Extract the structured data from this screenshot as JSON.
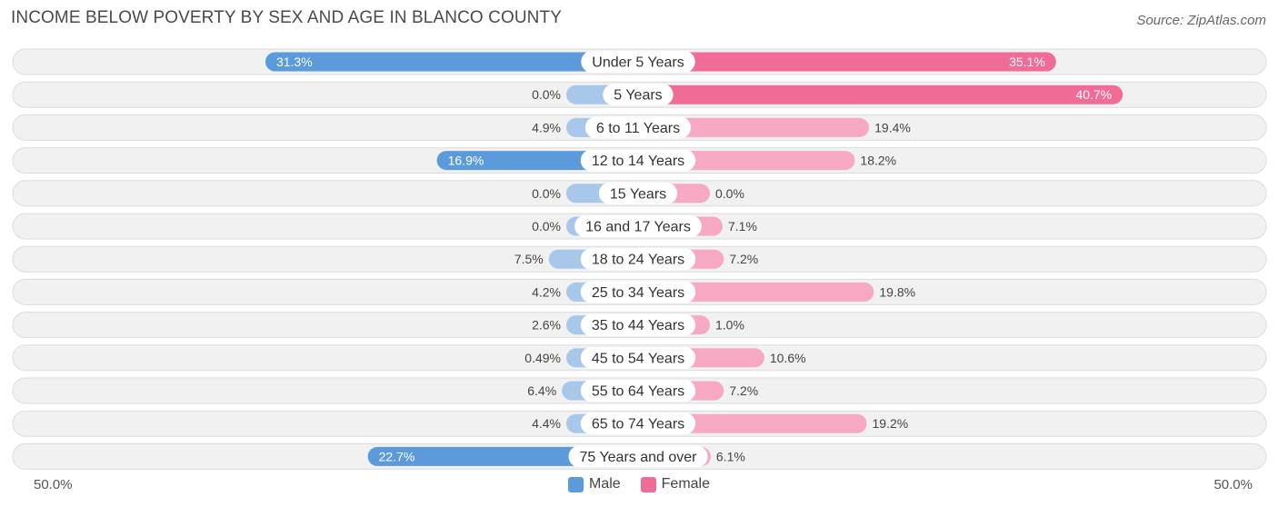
{
  "title": "INCOME BELOW POVERTY BY SEX AND AGE IN BLANCO COUNTY",
  "source": "Source: ZipAtlas.com",
  "axis": {
    "left_label": "50.0%",
    "right_label": "50.0%"
  },
  "legend": {
    "male": "Male",
    "female": "Female"
  },
  "colors": {
    "male_strong": "#5b9bdc",
    "male_light": "#a8c8eb",
    "female_strong": "#f06b96",
    "female_light": "#f7a9c3",
    "row_bg": "#f1f1f1"
  },
  "chart_data": {
    "type": "bar",
    "orientation": "horizontal-diverging",
    "xlim": [
      -50,
      50
    ],
    "categories": [
      "Under 5 Years",
      "5 Years",
      "6 to 11 Years",
      "12 to 14 Years",
      "15 Years",
      "16 and 17 Years",
      "18 to 24 Years",
      "25 to 34 Years",
      "35 to 44 Years",
      "45 to 54 Years",
      "55 to 64 Years",
      "65 to 74 Years",
      "75 Years and over"
    ],
    "series": [
      {
        "name": "Male",
        "values": [
          31.3,
          0.0,
          4.9,
          16.9,
          0.0,
          0.0,
          7.5,
          4.2,
          2.6,
          0.49,
          6.4,
          4.4,
          22.7
        ],
        "labels": [
          "31.3%",
          "0.0%",
          "4.9%",
          "16.9%",
          "0.0%",
          "0.0%",
          "7.5%",
          "4.2%",
          "2.6%",
          "0.49%",
          "6.4%",
          "4.4%",
          "22.7%"
        ]
      },
      {
        "name": "Female",
        "values": [
          35.1,
          40.7,
          19.4,
          18.2,
          0.0,
          7.1,
          7.2,
          19.8,
          1.0,
          10.6,
          7.2,
          19.2,
          6.1
        ],
        "labels": [
          "35.1%",
          "40.7%",
          "19.4%",
          "18.2%",
          "0.0%",
          "7.1%",
          "7.2%",
          "19.8%",
          "1.0%",
          "10.6%",
          "7.2%",
          "19.2%",
          "6.1%"
        ]
      }
    ]
  }
}
